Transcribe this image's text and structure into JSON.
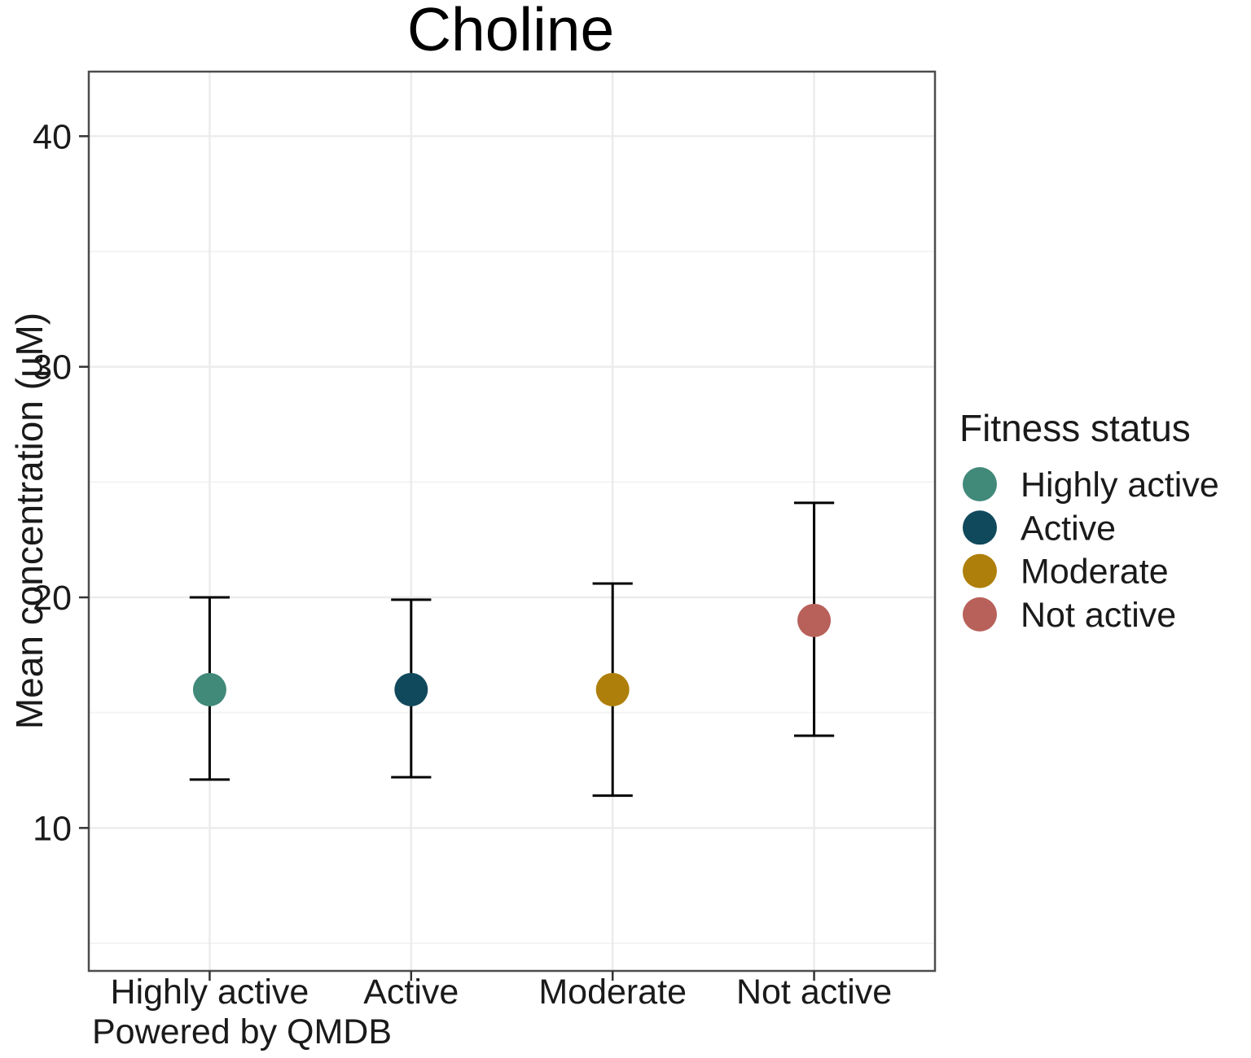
{
  "chart_data": {
    "type": "scatter",
    "subtype": "point-range-with-error-bars",
    "title": "Choline",
    "xlabel": "",
    "ylabel": "Mean concentration (µM)",
    "caption": "Powered by QMDB",
    "categories": [
      "Highly active",
      "Active",
      "Moderate",
      "Not active"
    ],
    "series": [
      {
        "name": "Highly active",
        "color": "#418979",
        "mean": 16.0,
        "ci_low": 12.1,
        "ci_high": 20.0
      },
      {
        "name": "Active",
        "color": "#10495C",
        "mean": 16.0,
        "ci_low": 12.2,
        "ci_high": 19.9
      },
      {
        "name": "Moderate",
        "color": "#AE7F0A",
        "mean": 16.0,
        "ci_low": 11.4,
        "ci_high": 20.6
      },
      {
        "name": "Not active",
        "color": "#B8605A",
        "mean": 19.0,
        "ci_low": 14.0,
        "ci_high": 24.1
      }
    ],
    "yticks": [
      10,
      20,
      30,
      40
    ],
    "yticks_minor": [
      5,
      15,
      25,
      35
    ],
    "ylim": [
      3.8,
      42.8
    ],
    "grid": true,
    "legend": {
      "title": "Fitness status",
      "position": "right",
      "entries": [
        "Highly active",
        "Active",
        "Moderate",
        "Not active"
      ]
    }
  },
  "style": {
    "background": "#FFFFFF",
    "panel_border": "#4D4D4D",
    "grid_major": "#EBEBEB",
    "grid_minor": "#F4F4F4",
    "error_bar": "#000000",
    "axis_tick": "#333333",
    "text_color": "#1A1A1A",
    "title_color": "#000000"
  }
}
